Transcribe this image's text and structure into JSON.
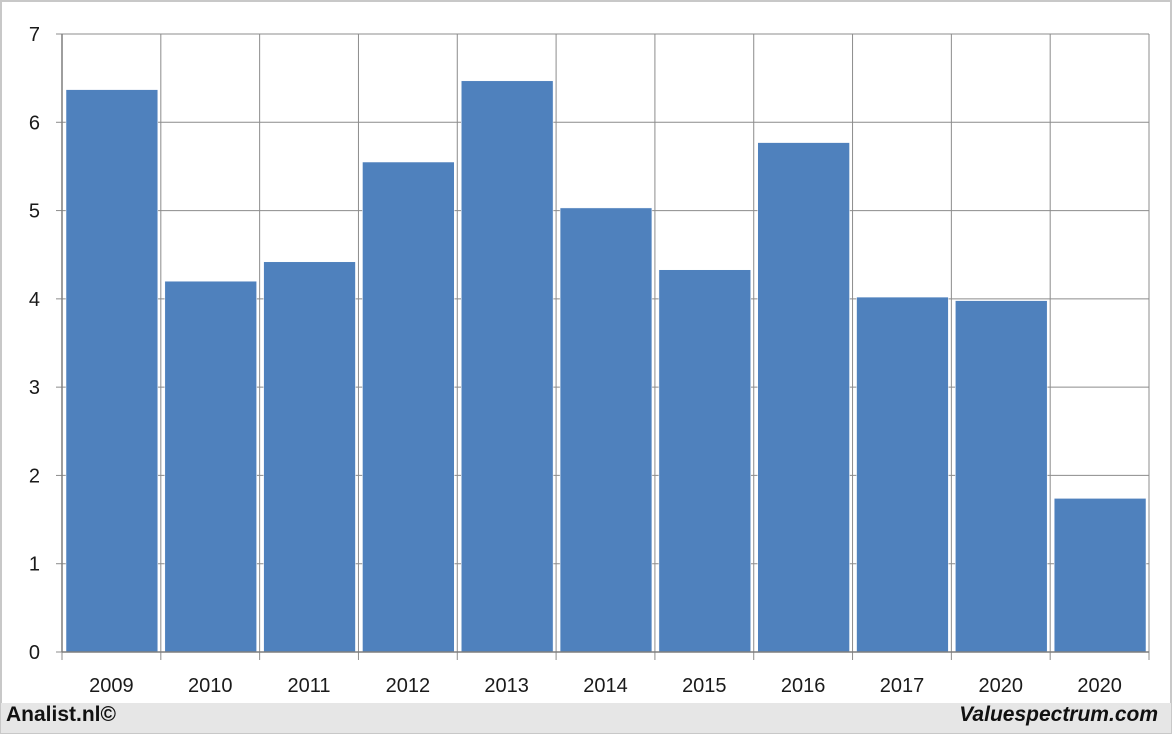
{
  "chart_data": {
    "type": "bar",
    "categories": [
      "2009",
      "2010",
      "2011",
      "2012",
      "2013",
      "2014",
      "2015",
      "2016",
      "2017",
      "2020",
      "2020"
    ],
    "values": [
      6.37,
      4.2,
      4.42,
      5.55,
      6.47,
      5.03,
      4.33,
      5.77,
      4.02,
      3.98,
      1.74
    ],
    "title": "",
    "xlabel": "",
    "ylabel": "",
    "ylim": [
      0,
      7
    ],
    "yticks": [
      "0",
      "1",
      "2",
      "3",
      "4",
      "5",
      "6",
      "7"
    ],
    "grid": true,
    "legend": "none",
    "bar_color": "#4f81bd"
  },
  "footer": {
    "left": "Analist.nl©",
    "right": "Valuespectrum.com"
  }
}
